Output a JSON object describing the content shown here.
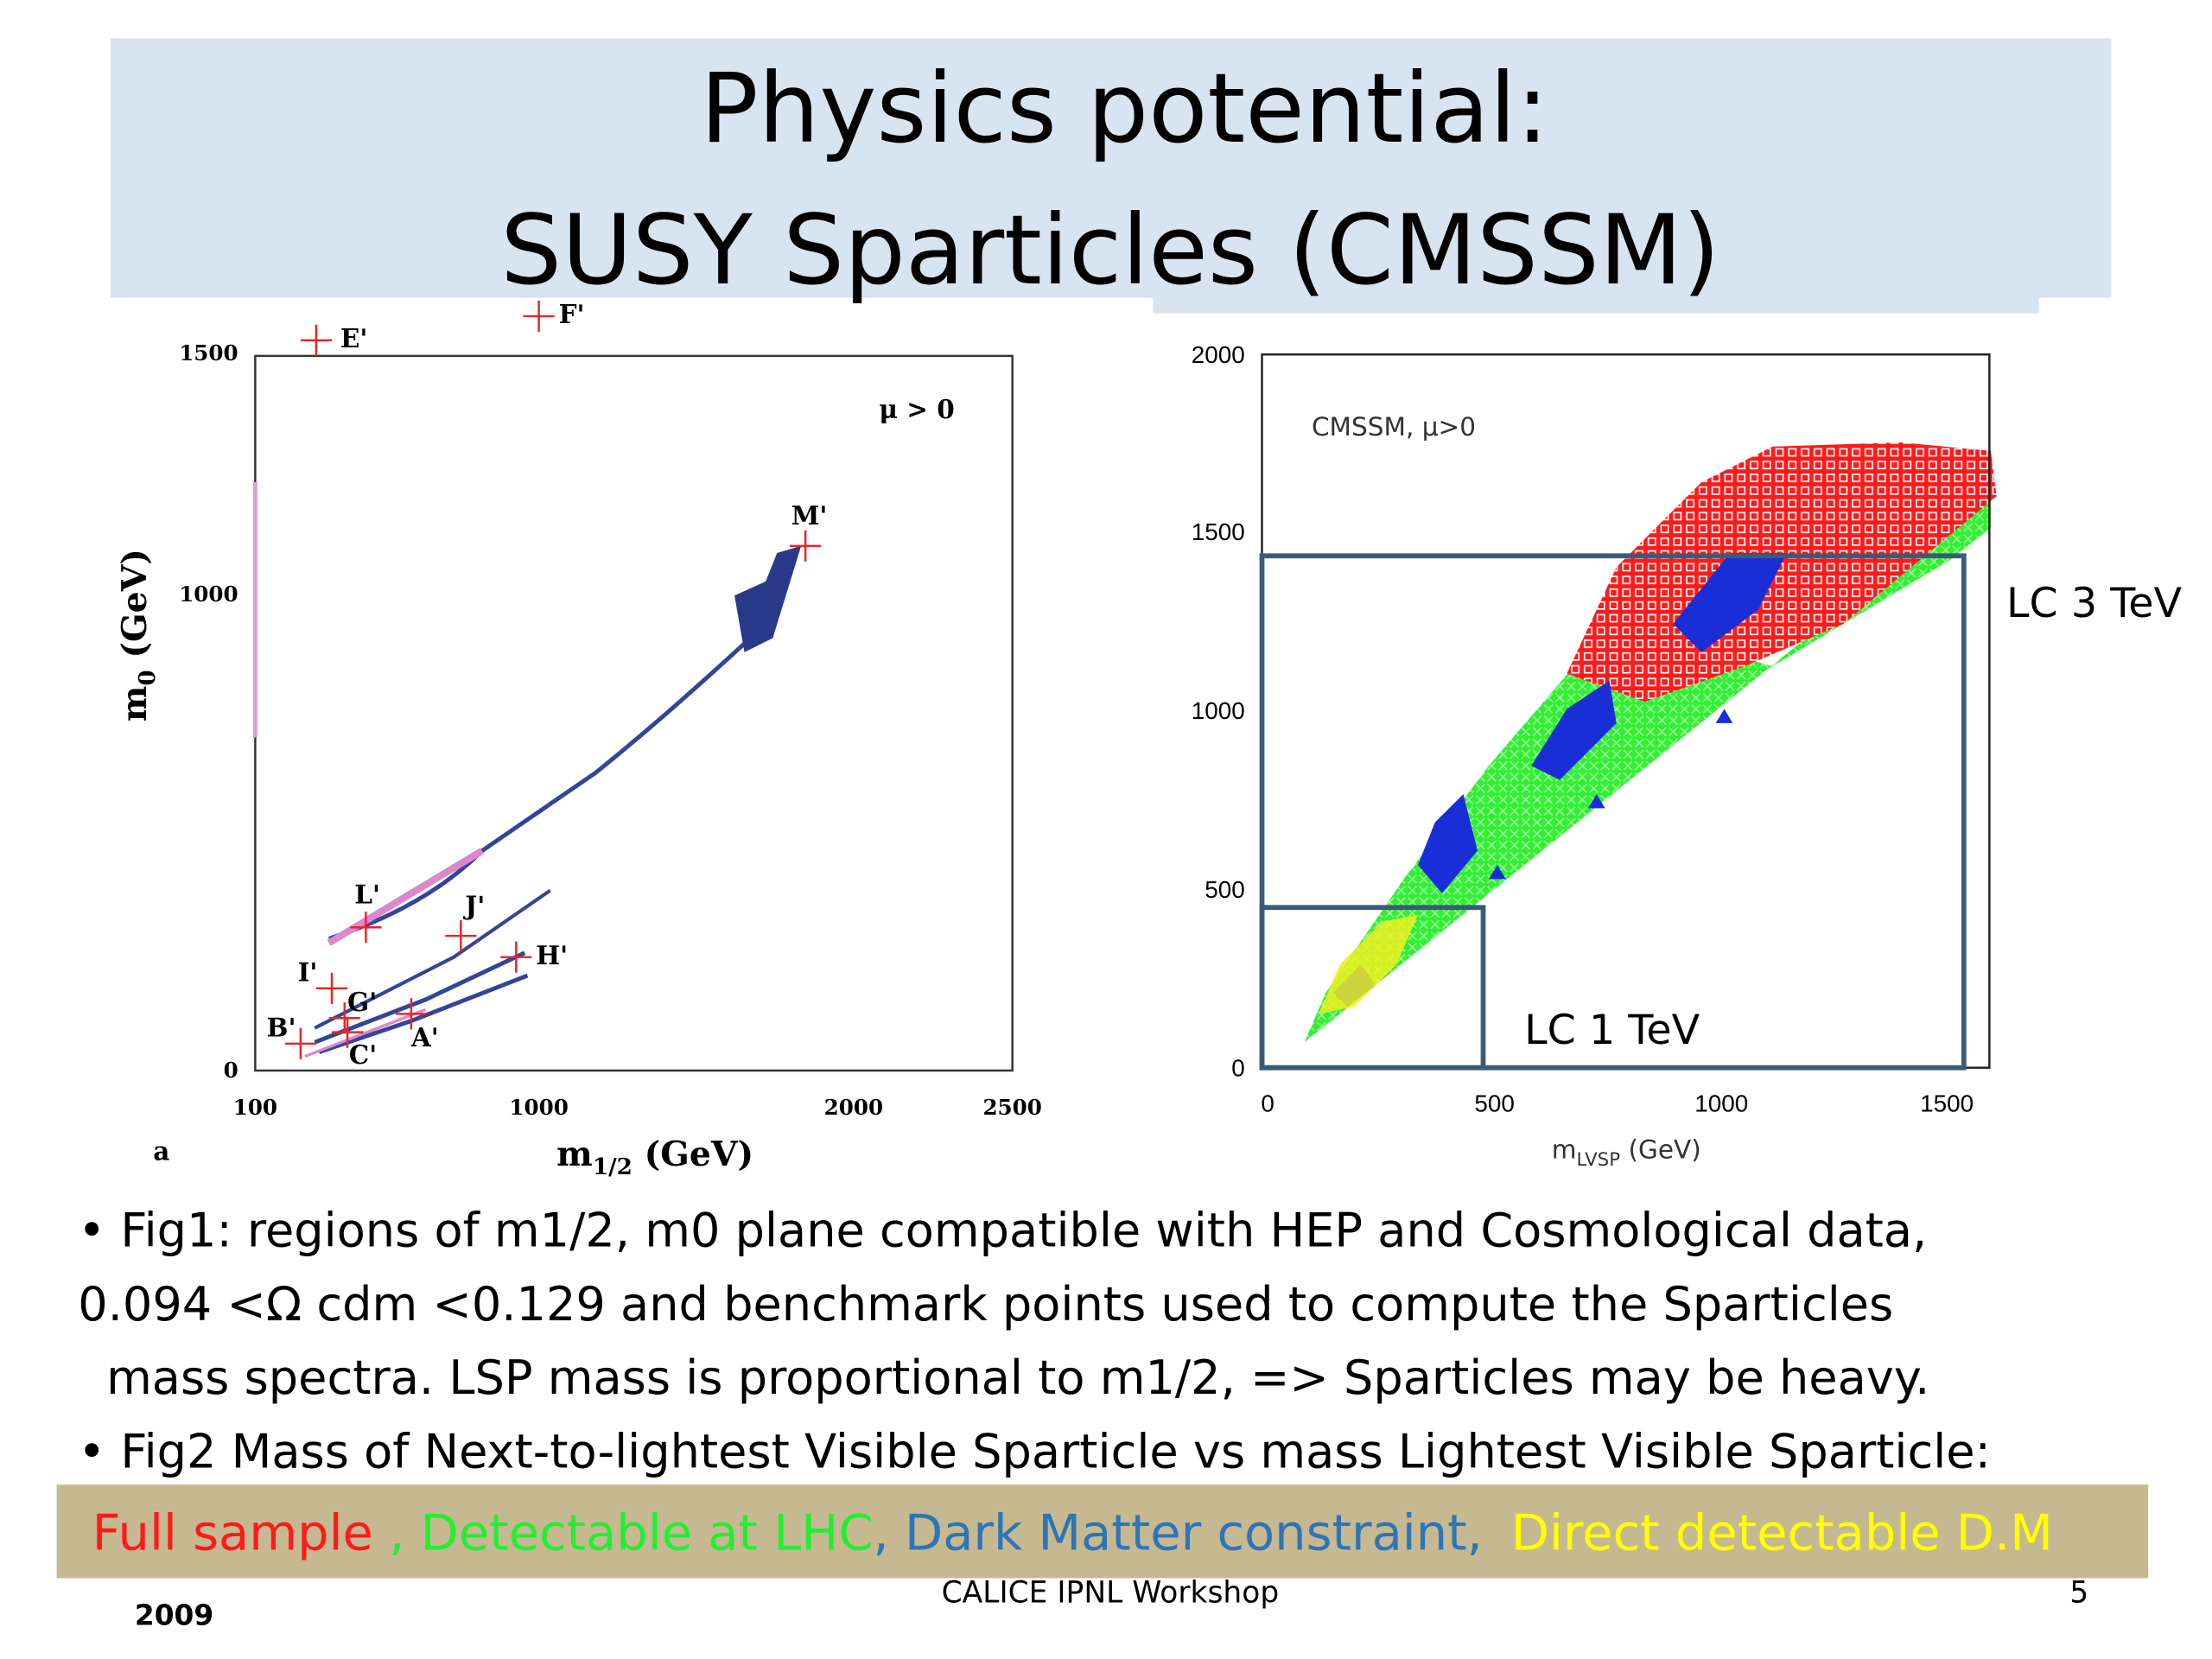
{
  "header": {
    "title_line1": "Physics potential:",
    "title_line2": "SUSY Sparticles (CMSSM)"
  },
  "fig1": {
    "x_label": {
      "base": "m",
      "sub": "1/2",
      "unit": " (GeV)"
    },
    "y_label": {
      "base": "m",
      "sub": "0",
      "unit": " (GeV)"
    },
    "xticks": [
      "100",
      "1000",
      "2000",
      "2500"
    ],
    "yticks": [
      "1500",
      "1000",
      "0"
    ],
    "annotation": "μ > 0",
    "panel": "a",
    "points": [
      "E'",
      "F'",
      "M'",
      "L'",
      "J'",
      "H'",
      "I'",
      "G'",
      "B'",
      "C'",
      "A'"
    ]
  },
  "fig2": {
    "x_label": {
      "base": "m",
      "sub": "LVSP",
      "unit": "  (GeV)"
    },
    "xticks": [
      "0",
      "500",
      "1000",
      "1500"
    ],
    "yticks": [
      "2000",
      "1500",
      "1000",
      "500",
      "0"
    ],
    "annotation": "CMSSM, μ>0",
    "boxes": [
      "LC 3 TeV",
      "LC 1 TeV"
    ]
  },
  "bullets": [
    "• Fig1: regions of m1/2, m0 plane compatible with HEP and Cosmological data,",
    "0.094 <Ω cdm <0.129 and benchmark points used to compute the Sparticles",
    "mass spectra.  LSP mass is proportional to m1/2, => Sparticles may be heavy.",
    "• Fig2 Mass of Next-to-lightest Visible Sparticle vs mass Lightest Visible Sparticle:"
  ],
  "legend": [
    "Full sample",
    " , Detectable at LHC",
    ", Dark Matter constraint,",
    "Direct detectable D.M"
  ],
  "footer": {
    "date": "2009",
    "event": "CALICE IPNL Workshop",
    "page": "5"
  }
}
